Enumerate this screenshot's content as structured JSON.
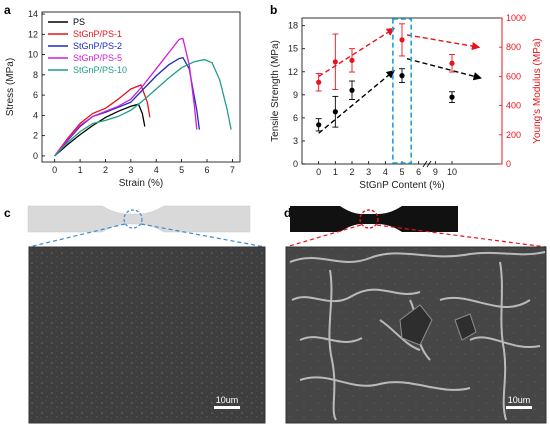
{
  "panels": {
    "a": {
      "letter": "a"
    },
    "b": {
      "letter": "b"
    },
    "c": {
      "letter": "c",
      "scale_label": "10um"
    },
    "d": {
      "letter": "d",
      "scale_label": "10um"
    }
  },
  "chart_data": [
    {
      "type": "line",
      "panel": "a",
      "xlabel": "Strain (%)",
      "ylabel": "Stress (MPa)",
      "xlim": [
        -0.5,
        7.3
      ],
      "ylim": [
        -0.6,
        14.2
      ],
      "xticks": [
        0,
        1,
        2,
        3,
        4,
        5,
        6,
        7
      ],
      "yticks": [
        0,
        2,
        4,
        6,
        8,
        10,
        12,
        14
      ],
      "grid": false,
      "legend": "top-left",
      "series": [
        {
          "name": "PS",
          "color": "#000000",
          "points": [
            [
              0,
              0
            ],
            [
              0.5,
              1.1
            ],
            [
              1.0,
              2.1
            ],
            [
              1.5,
              3.0
            ],
            [
              2.0,
              3.8
            ],
            [
              2.5,
              4.4
            ],
            [
              3.0,
              4.9
            ],
            [
              3.3,
              5.1
            ],
            [
              3.45,
              4.2
            ],
            [
              3.55,
              2.9
            ]
          ]
        },
        {
          "name": "StGnP/PS-1",
          "color": "#e8141c",
          "points": [
            [
              0,
              0
            ],
            [
              0.5,
              1.7
            ],
            [
              1.0,
              3.2
            ],
            [
              1.5,
              4.2
            ],
            [
              2.0,
              4.7
            ],
            [
              2.5,
              5.6
            ],
            [
              3.0,
              6.6
            ],
            [
              3.4,
              7.0
            ],
            [
              3.65,
              5.3
            ],
            [
              3.75,
              3.8
            ]
          ]
        },
        {
          "name": "StGnP/PS-2",
          "color": "#1d2cc4",
          "points": [
            [
              0,
              0
            ],
            [
              0.5,
              1.5
            ],
            [
              1.0,
              2.9
            ],
            [
              1.5,
              3.9
            ],
            [
              2.0,
              4.3
            ],
            [
              2.5,
              4.8
            ],
            [
              3.0,
              5.3
            ],
            [
              3.5,
              6.6
            ],
            [
              4.0,
              7.9
            ],
            [
              4.5,
              9.0
            ],
            [
              4.9,
              9.6
            ],
            [
              5.05,
              9.7
            ],
            [
              5.3,
              8.6
            ],
            [
              5.6,
              4.5
            ],
            [
              5.7,
              2.6
            ]
          ]
        },
        {
          "name": "StGnP/PS-5",
          "color": "#d21cd6",
          "points": [
            [
              0,
              0
            ],
            [
              0.5,
              1.6
            ],
            [
              1.0,
              3.0
            ],
            [
              1.5,
              3.9
            ],
            [
              2.0,
              4.4
            ],
            [
              2.5,
              4.9
            ],
            [
              3.0,
              5.6
            ],
            [
              3.5,
              7.0
            ],
            [
              4.0,
              8.6
            ],
            [
              4.5,
              10.2
            ],
            [
              4.9,
              11.5
            ],
            [
              5.05,
              11.6
            ],
            [
              5.3,
              9.0
            ],
            [
              5.5,
              5.0
            ],
            [
              5.6,
              2.6
            ]
          ]
        },
        {
          "name": "StGnP/PS-10",
          "color": "#1f9f8a",
          "points": [
            [
              0,
              0
            ],
            [
              0.5,
              1.3
            ],
            [
              1.0,
              2.4
            ],
            [
              1.5,
              3.2
            ],
            [
              2.0,
              3.5
            ],
            [
              2.5,
              3.9
            ],
            [
              3.0,
              4.5
            ],
            [
              3.5,
              5.5
            ],
            [
              4.0,
              6.6
            ],
            [
              4.5,
              7.7
            ],
            [
              5.0,
              8.7
            ],
            [
              5.5,
              9.3
            ],
            [
              5.9,
              9.5
            ],
            [
              6.2,
              9.2
            ],
            [
              6.5,
              7.5
            ],
            [
              6.8,
              4.5
            ],
            [
              6.95,
              2.6
            ]
          ]
        }
      ]
    },
    {
      "type": "scatter",
      "panel": "b",
      "xlabel": "StGnP Content (%)",
      "ylabel": "Tensile Strength (MPa)",
      "y2label": "Young's Modulus (MPa)",
      "xlim": [
        -1,
        11
      ],
      "ylim": [
        0,
        19
      ],
      "y2lim": [
        0,
        1000
      ],
      "xticks": [
        0,
        1,
        2,
        3,
        4,
        5,
        6,
        9,
        10
      ],
      "xtick_positions": [
        0,
        1,
        2,
        3,
        4,
        5,
        6,
        7,
        8
      ],
      "yticks": [
        0,
        3,
        6,
        9,
        12,
        15,
        18
      ],
      "y2ticks": [
        0,
        200,
        400,
        600,
        800,
        1000
      ],
      "grid": false,
      "series": [
        {
          "name": "Tensile Strength",
          "axis": "left",
          "color": "#000000",
          "x": [
            0,
            1,
            2,
            5,
            10
          ],
          "y": [
            5.1,
            6.8,
            9.6,
            11.5,
            8.7
          ],
          "err": [
            0.8,
            2.0,
            1.2,
            0.9,
            0.7
          ]
        },
        {
          "name": "Young's Modulus",
          "axis": "right",
          "color": "#e8141c",
          "x": [
            0,
            1,
            2,
            5,
            10
          ],
          "y": [
            560,
            700,
            710,
            850,
            690
          ],
          "err": [
            60,
            190,
            80,
            110,
            60
          ]
        }
      ],
      "annotations": [
        {
          "type": "trend-arrow",
          "color": "#000000",
          "from": [
            0,
            4.0
          ],
          "to": [
            4.5,
            12.1
          ]
        },
        {
          "type": "trend-arrow",
          "color": "#000000",
          "from": [
            5.3,
            13.7
          ],
          "to": [
            9.7,
            11.2
          ]
        },
        {
          "type": "trend-arrow",
          "color": "#e8141c",
          "from": [
            0,
            11.4
          ],
          "to": [
            4.5,
            17.6
          ]
        },
        {
          "type": "trend-arrow",
          "color": "#e8141c",
          "from": [
            5.3,
            16.8
          ],
          "to": [
            9.6,
            15.2
          ]
        },
        {
          "type": "highlight-box",
          "color": "#1aa6d8",
          "x_range": [
            4.45,
            5.55
          ]
        }
      ]
    }
  ]
}
